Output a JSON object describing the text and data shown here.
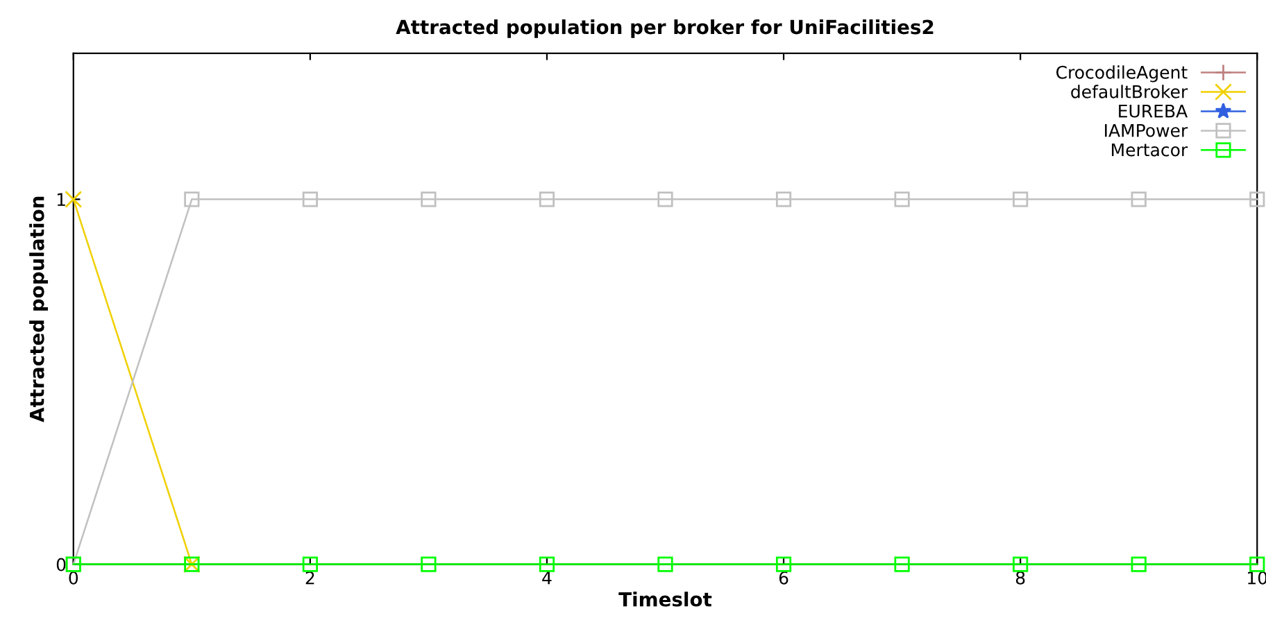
{
  "chart_data": {
    "type": "line",
    "title": "Attracted population per broker for UniFacilities2",
    "xlabel": "Timeslot",
    "ylabel": "Attracted population",
    "x": [
      0,
      1,
      2,
      3,
      4,
      5,
      6,
      7,
      8,
      9,
      10
    ],
    "series": [
      {
        "name": "CrocodileAgent",
        "color": "#c08080",
        "marker": "cross",
        "values": [
          null,
          null,
          null,
          null,
          null,
          null,
          null,
          null,
          null,
          null,
          null
        ]
      },
      {
        "name": "defaultBroker",
        "color": "#f0d000",
        "marker": "x",
        "values": [
          1,
          0,
          null,
          null,
          null,
          null,
          null,
          null,
          null,
          null,
          null
        ]
      },
      {
        "name": "EUREBA",
        "color": "#3060e0",
        "marker": "star",
        "values": [
          null,
          null,
          null,
          null,
          null,
          null,
          null,
          null,
          null,
          null,
          null
        ]
      },
      {
        "name": "IAMPower",
        "color": "#c0c0c0",
        "marker": "square",
        "values": [
          0,
          1,
          1,
          1,
          1,
          1,
          1,
          1,
          1,
          1,
          1
        ]
      },
      {
        "name": "Mertacor",
        "color": "#00ff00",
        "marker": "square",
        "values": [
          0,
          0,
          0,
          0,
          0,
          0,
          0,
          0,
          0,
          0,
          0
        ]
      }
    ],
    "xlim": [
      0,
      10
    ],
    "xticks": [
      0,
      2,
      4,
      6,
      8,
      10
    ],
    "ylim": [
      0,
      1.4
    ],
    "yticks": [
      0,
      1
    ],
    "grid": false,
    "legend": "top right"
  }
}
